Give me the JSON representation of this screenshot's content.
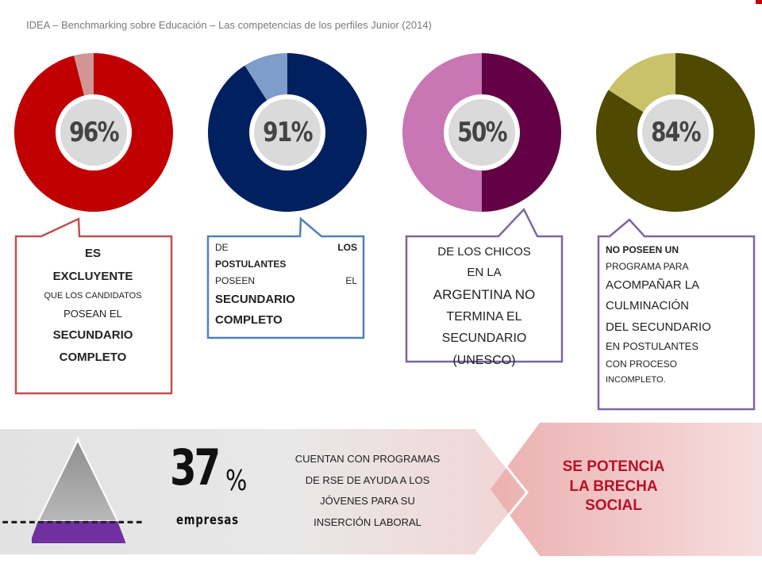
{
  "header": {
    "title": "IDEA – Benchmarking sobre Educación – Las competencias de los perfiles Junior (2014)"
  },
  "donuts": [
    {
      "label": "96%",
      "value": 96,
      "main_color": "#c00000",
      "rest_color": "#d09595"
    },
    {
      "label": "91%",
      "value": 91,
      "main_color": "#002060",
      "rest_color": "#7f9dca"
    },
    {
      "label": "50%",
      "value": 50,
      "main_color": "#640045",
      "rest_color": "#c877b4"
    },
    {
      "label": "84%",
      "value": 84,
      "main_color": "#4f4a00",
      "rest_color": "#c9c26a"
    }
  ],
  "callouts": {
    "c1": {
      "lines": [
        "ES",
        "EXCLUYENTE",
        "QUE LOS CANDIDATOS",
        "POSEAN EL",
        "SECUNDARIO",
        "COMPLETO"
      ]
    },
    "c2": {
      "line1a": "DE",
      "line1b": "LOS",
      "line2": "POSTULANTES",
      "line3a": "POSEEN",
      "line3b": "EL",
      "line4": "SECUNDARIO",
      "line5": "COMPLETO"
    },
    "c3": {
      "lines": [
        "DE LOS CHICOS",
        "EN LA",
        "ARGENTINA NO",
        "TERMINA EL",
        "SECUNDARIO",
        "(UNESCO)"
      ]
    },
    "c4": {
      "lines": [
        "NO POSEEN UN",
        "PROGRAMA PARA",
        "ACOMPAÑAR LA",
        "CULMINACIÓN",
        "DEL SECUNDARIO",
        "EN POSTULANTES",
        "CON PROCESO",
        "INCOMPLETO."
      ]
    }
  },
  "bottom": {
    "big_number": "37",
    "percent_sign": "%",
    "unit": "empresas",
    "text_lines": [
      "CUENTAN CON PROGRAMAS",
      "DE RSE DE AYUDA A LOS",
      "JÓVENES PARA SU",
      "INSERCIÓN LABORAL"
    ],
    "conclusion_lines": [
      "SE POTENCIA",
      "LA BRECHA",
      "SOCIAL"
    ],
    "dashes": "----------------"
  }
}
